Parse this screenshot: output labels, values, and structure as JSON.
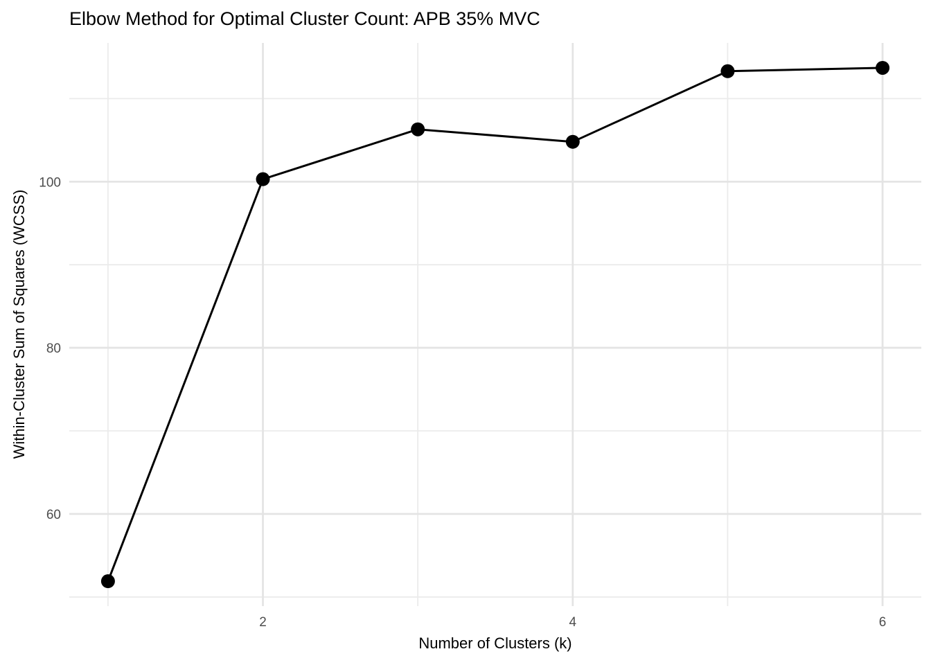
{
  "chart_data": {
    "type": "line",
    "title": "Elbow Method for Optimal Cluster Count: APB 35% MVC",
    "xlabel": "Number of Clusters (k)",
    "ylabel": "Within-Cluster Sum of Squares (WCSS)",
    "series": [
      {
        "name": "WCSS",
        "x": [
          1,
          2,
          3,
          4,
          5,
          6
        ],
        "y": [
          51.9,
          100.3,
          106.3,
          104.8,
          113.3,
          113.7
        ]
      }
    ],
    "x_major_ticks": [
      2,
      4,
      6
    ],
    "y_major_ticks": [
      60,
      80,
      100
    ],
    "x_minor_ticks": [
      1,
      3,
      5
    ],
    "y_minor_ticks": [
      50,
      70,
      90,
      110
    ],
    "xlim": [
      0.75,
      6.25
    ],
    "ylim": [
      48.9,
      116.7
    ],
    "grid": true,
    "legend_position": "none",
    "colors": {
      "line": "#000000",
      "point": "#000000",
      "major_grid": "#e4e4e4",
      "minor_grid": "#ebebeb",
      "tick_label": "#4d4d4d",
      "text": "#000000",
      "background": "#ffffff"
    },
    "point_radius": 10,
    "line_width": 3
  }
}
